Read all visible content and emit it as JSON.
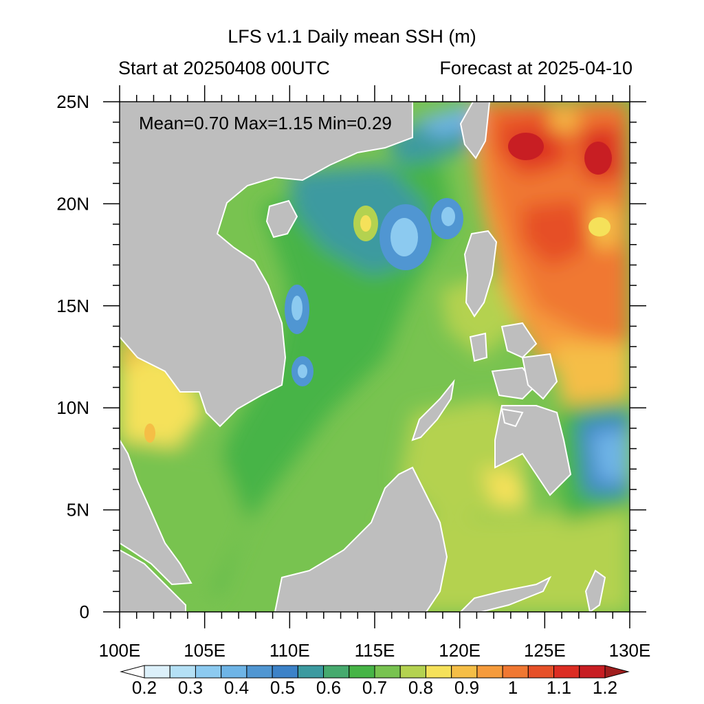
{
  "header": {
    "title": "LFS v1.1 Daily mean SSH (m)",
    "start": "Start at 20250408 00UTC",
    "forecast": "Forecast at 2025-04-10"
  },
  "stats": "Mean=0.70  Max=1.15  Min=0.29",
  "axes": {
    "x_ticks": [
      "100E",
      "105E",
      "110E",
      "115E",
      "120E",
      "125E",
      "130E"
    ],
    "y_ticks": [
      "25N",
      "20N",
      "15N",
      "10N",
      "5N",
      "0"
    ],
    "x_range": [
      100,
      130
    ],
    "y_range": [
      0,
      25
    ]
  },
  "colorbar": {
    "labels": [
      "0.2",
      "0.3",
      "0.4",
      "0.5",
      "0.6",
      "0.7",
      "0.8",
      "0.9",
      "1",
      "1.1",
      "1.2"
    ],
    "colors": [
      "#ffffff",
      "#dcf0fa",
      "#b4e0f5",
      "#8ccaf0",
      "#6eb4e6",
      "#5096d2",
      "#3c82c8",
      "#3c9aa0",
      "#46aa6e",
      "#46b446",
      "#78c350",
      "#b4d250",
      "#f5e15a",
      "#f5be46",
      "#f59b3c",
      "#f07832",
      "#e65028",
      "#dc2d23",
      "#c81e23",
      "#a01e1e"
    ]
  },
  "map_colors": {
    "land": "#bebebe",
    "coast": "#ffffff"
  }
}
